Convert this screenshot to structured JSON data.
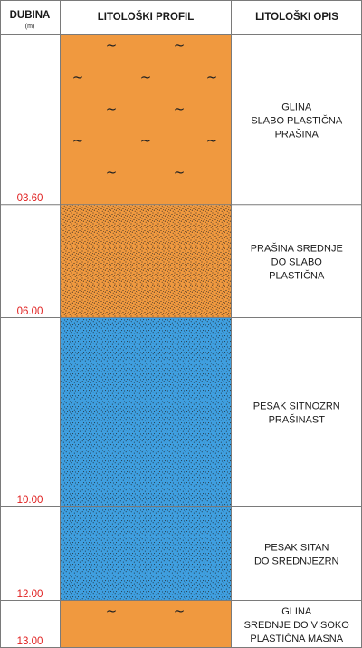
{
  "header": {
    "depth_label": "DUBINA",
    "depth_unit": "(m)",
    "profile_label": "LITOLOŠKI PROFIL",
    "description_label": "LITOLOŠKI OPIS"
  },
  "column_depth": {
    "start_m": 0,
    "end_m": 13.0
  },
  "layers": [
    {
      "top_m": 0,
      "bottom_m": 3.6,
      "depth_label": "03.60",
      "fill": "#f0993f",
      "pattern": "clay-tilde",
      "description": [
        "GLINA",
        "SLABO PLASTIČNA",
        "PRAŠINA"
      ]
    },
    {
      "top_m": 3.6,
      "bottom_m": 6.0,
      "depth_label": "06.00",
      "fill": "#f0993f",
      "pattern": "silt-dots",
      "description": [
        "PRAŠINA SREDNJE",
        "DO SLABO",
        "PLASTIČNA"
      ]
    },
    {
      "top_m": 6.0,
      "bottom_m": 10.0,
      "depth_label": "10.00",
      "fill": "#3f9fe0",
      "pattern": "sand-dots",
      "description": [
        "PESAK SITNOZRN",
        "PRAŠINAST"
      ]
    },
    {
      "top_m": 10.0,
      "bottom_m": 12.0,
      "depth_label": "12.00",
      "fill": "#3f9fe0",
      "pattern": "sand-dots",
      "description": [
        "PESAK SITAN",
        "DO SREDNJEZRN"
      ]
    },
    {
      "top_m": 12.0,
      "bottom_m": 13.0,
      "depth_label": "13.00",
      "fill": "#f0993f",
      "pattern": "clay-tilde",
      "description": [
        "GLINA",
        "SREDNJE DO VISOKO",
        "PLASTIČNA MASNA"
      ]
    }
  ],
  "colors": {
    "orange": "#f0993f",
    "blue": "#3f9fe0",
    "depth_text": "#e02020",
    "grid": "#7a7a7a"
  }
}
